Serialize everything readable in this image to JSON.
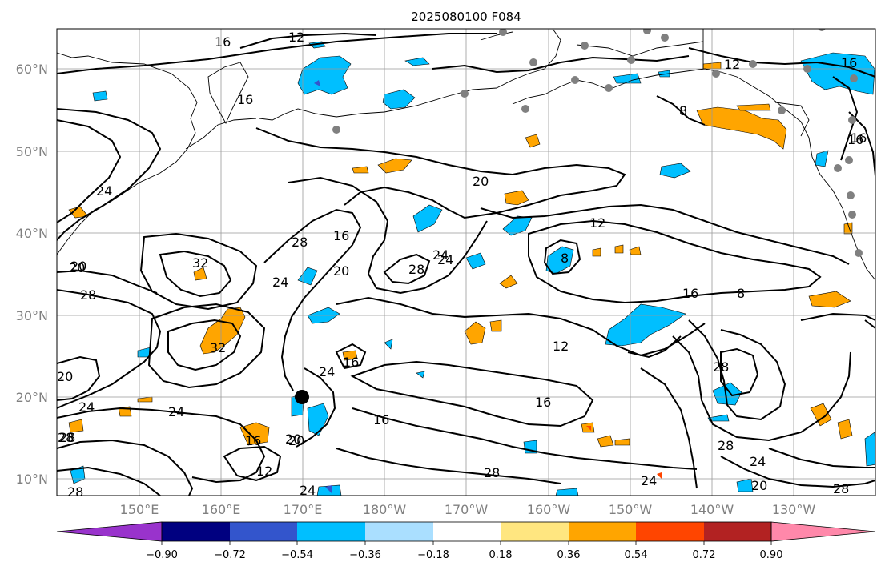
{
  "title": "2025080100 F084",
  "lat_labels": [
    "60°N",
    "50°N",
    "40°N",
    "30°N",
    "20°N",
    "10°N"
  ],
  "lon_labels": [
    "150°E",
    "160°E",
    "170°E",
    "180°W",
    "170°W",
    "160°W",
    "150°W",
    "140°W",
    "130°W"
  ],
  "contour_labels": [
    "16",
    "12",
    "16",
    "16",
    "12",
    "16",
    "8",
    "24",
    "20",
    "16",
    "12",
    "28",
    "16",
    "20",
    "28",
    "24",
    "8",
    "28",
    "32",
    "20",
    "24",
    "28",
    "16",
    "8",
    "20",
    "12",
    "28",
    "32",
    "24",
    "16",
    "20",
    "24",
    "24",
    "24",
    "16",
    "16",
    "20",
    "12",
    "24",
    "28",
    "24",
    "28",
    "24",
    "20",
    "28",
    "28",
    "20",
    "28",
    "16"
  ],
  "colorbar": {
    "tick_labels": [
      "−0.90",
      "−0.72",
      "−0.54",
      "−0.36",
      "−0.18",
      "0.18",
      "0.36",
      "0.54",
      "0.72",
      "0.90"
    ],
    "colors": [
      "#9933cc",
      "#000080",
      "#3355cc",
      "#00bfff",
      "#aadfff",
      "#ffffff",
      "#ffe680",
      "#ffa500",
      "#ff4500",
      "#b22222",
      "#ff88aa"
    ]
  },
  "markers": {
    "color_gray": "#808080",
    "color_black": "#000000"
  }
}
